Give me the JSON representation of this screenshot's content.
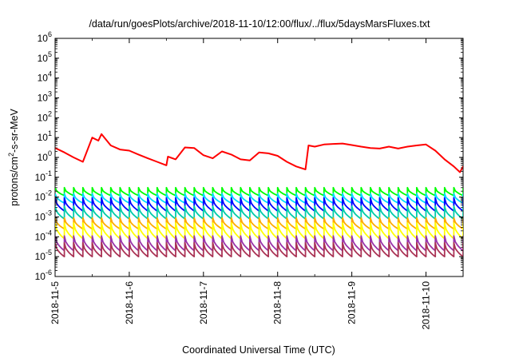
{
  "chart_data": {
    "type": "line",
    "title": "/data/run/goesPlots/archive/2018-11-10/12:00/flux/../flux/5daysMarsFluxes.txt",
    "xlabel": "Coordinated Universal Time (UTC)",
    "ylabel": {
      "base": "protons/cm",
      "sup": "2",
      "rest": "-s-sr-MeV"
    },
    "y_scale": "log",
    "ylim_exp": [
      -6,
      6
    ],
    "y_ticks": [
      {
        "base": "10",
        "exp": "-6"
      },
      {
        "base": "10",
        "exp": "-5"
      },
      {
        "base": "10",
        "exp": "-4"
      },
      {
        "base": "10",
        "exp": "-3"
      },
      {
        "base": "10",
        "exp": "-2"
      },
      {
        "base": "10",
        "exp": "-1"
      },
      {
        "base": "10",
        "exp": "0"
      },
      {
        "base": "10",
        "exp": "1"
      },
      {
        "base": "10",
        "exp": "2"
      },
      {
        "base": "10",
        "exp": "3"
      },
      {
        "base": "10",
        "exp": "4"
      },
      {
        "base": "10",
        "exp": "5"
      },
      {
        "base": "10",
        "exp": "6"
      }
    ],
    "x_ticks": [
      "2018-11-5",
      "2018-11-6",
      "2018-11-7",
      "2018-11-8",
      "2018-11-9",
      "2018-11-10"
    ],
    "xlim": [
      "2018-11-05T00:00",
      "2018-11-10T12:00"
    ],
    "grid": false,
    "legend": "none",
    "series": [
      {
        "color": "#ff0000",
        "x": [
          "2018-11-05T00:00",
          "2018-11-05T03:00",
          "2018-11-05T06:00",
          "2018-11-05T09:00",
          "2018-11-05T12:00",
          "2018-11-05T14:00",
          "2018-11-05T15:00",
          "2018-11-05T18:00",
          "2018-11-05T21:00",
          "2018-11-06T00:00",
          "2018-11-06T03:00",
          "2018-11-06T06:00",
          "2018-11-06T09:00",
          "2018-11-06T12:00",
          "2018-11-06T12:30",
          "2018-11-06T15:00",
          "2018-11-06T18:00",
          "2018-11-06T21:00",
          "2018-11-07T00:00",
          "2018-11-07T03:00",
          "2018-11-07T06:00",
          "2018-11-07T09:00",
          "2018-11-07T12:00",
          "2018-11-07T15:00",
          "2018-11-07T18:00",
          "2018-11-07T21:00",
          "2018-11-08T00:00",
          "2018-11-08T03:00",
          "2018-11-08T06:00",
          "2018-11-08T09:00",
          "2018-11-08T10:00",
          "2018-11-08T12:00",
          "2018-11-08T15:00",
          "2018-11-08T18:00",
          "2018-11-08T21:00",
          "2018-11-09T00:00",
          "2018-11-09T03:00",
          "2018-11-09T06:00",
          "2018-11-09T09:00",
          "2018-11-09T12:00",
          "2018-11-09T15:00",
          "2018-11-09T18:00",
          "2018-11-09T21:00",
          "2018-11-10T00:00",
          "2018-11-10T03:00",
          "2018-11-10T06:00",
          "2018-11-10T09:00",
          "2018-11-10T11:00",
          "2018-11-10T12:00"
        ],
        "y": [
          3.0,
          1.8,
          1.0,
          0.6,
          10,
          7,
          15,
          4,
          2.5,
          2.2,
          1.4,
          0.9,
          0.6,
          0.4,
          1.1,
          0.8,
          3.2,
          3.0,
          1.3,
          0.9,
          2.0,
          1.4,
          0.8,
          0.7,
          1.8,
          1.6,
          1.2,
          0.6,
          0.35,
          0.25,
          4.0,
          3.5,
          4.5,
          4.8,
          5.0,
          4.2,
          3.5,
          3.0,
          2.8,
          3.5,
          2.8,
          3.5,
          4.0,
          4.5,
          2.2,
          0.8,
          0.35,
          0.18,
          0.35
        ]
      },
      {
        "color": "#00ff00",
        "cycle": [
          0.03,
          0.012
        ]
      },
      {
        "color": "#00ddff",
        "cycle": [
          0.015,
          0.005
        ]
      },
      {
        "color": "#0000ff",
        "cycle": [
          0.009,
          0.002
        ]
      },
      {
        "color": "#00ccaa",
        "cycle": [
          0.0035,
          0.0008
        ]
      },
      {
        "color": "#ffaa00",
        "cycle": [
          0.0009,
          0.00025
        ]
      },
      {
        "color": "#ffff00",
        "cycle": [
          0.0005,
          8e-05
        ]
      },
      {
        "color": "#9933aa",
        "cycle": [
          0.00011,
          2e-05
        ]
      },
      {
        "color": "#aa3355",
        "cycle": [
          5e-05,
          1e-05
        ]
      }
    ]
  }
}
